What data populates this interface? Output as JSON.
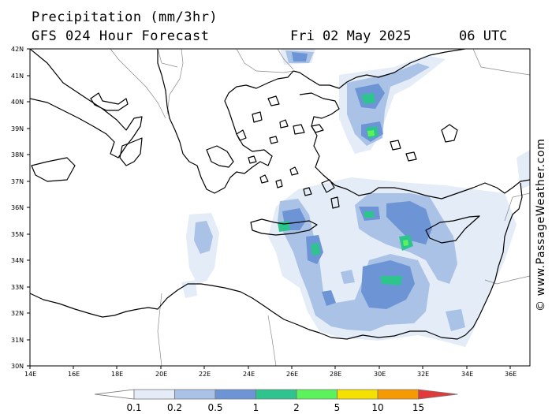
{
  "header": {
    "title": "Precipitation (mm/3hr)",
    "subtitle": "GFS 024 Hour Forecast",
    "date": "Fri 02 May 2025",
    "time": "06 UTC"
  },
  "credit": "© www.PassageWeather.com",
  "axes": {
    "lat_labels": [
      "42N",
      "41N",
      "40N",
      "39N",
      "38N",
      "37N",
      "36N",
      "35N",
      "34N",
      "33N",
      "32N",
      "31N",
      "30N"
    ],
    "lon_labels": [
      "14E",
      "16E",
      "18E",
      "20E",
      "22E",
      "24E",
      "26E",
      "28E",
      "30E",
      "32E",
      "34E",
      "36E"
    ]
  },
  "legend": {
    "labels": [
      "0.1",
      "0.2",
      "0.5",
      "1",
      "2",
      "5",
      "10",
      "15"
    ],
    "colors": [
      "#ffffff",
      "#e4ecf7",
      "#a9c2e6",
      "#6d95d6",
      "#2ec48e",
      "#5cf25c",
      "#f5e100",
      "#f59a00",
      "#e23a3a"
    ]
  },
  "map_colors": {
    "land_border": "#888888",
    "coast": "#000000",
    "frame": "#000000"
  }
}
